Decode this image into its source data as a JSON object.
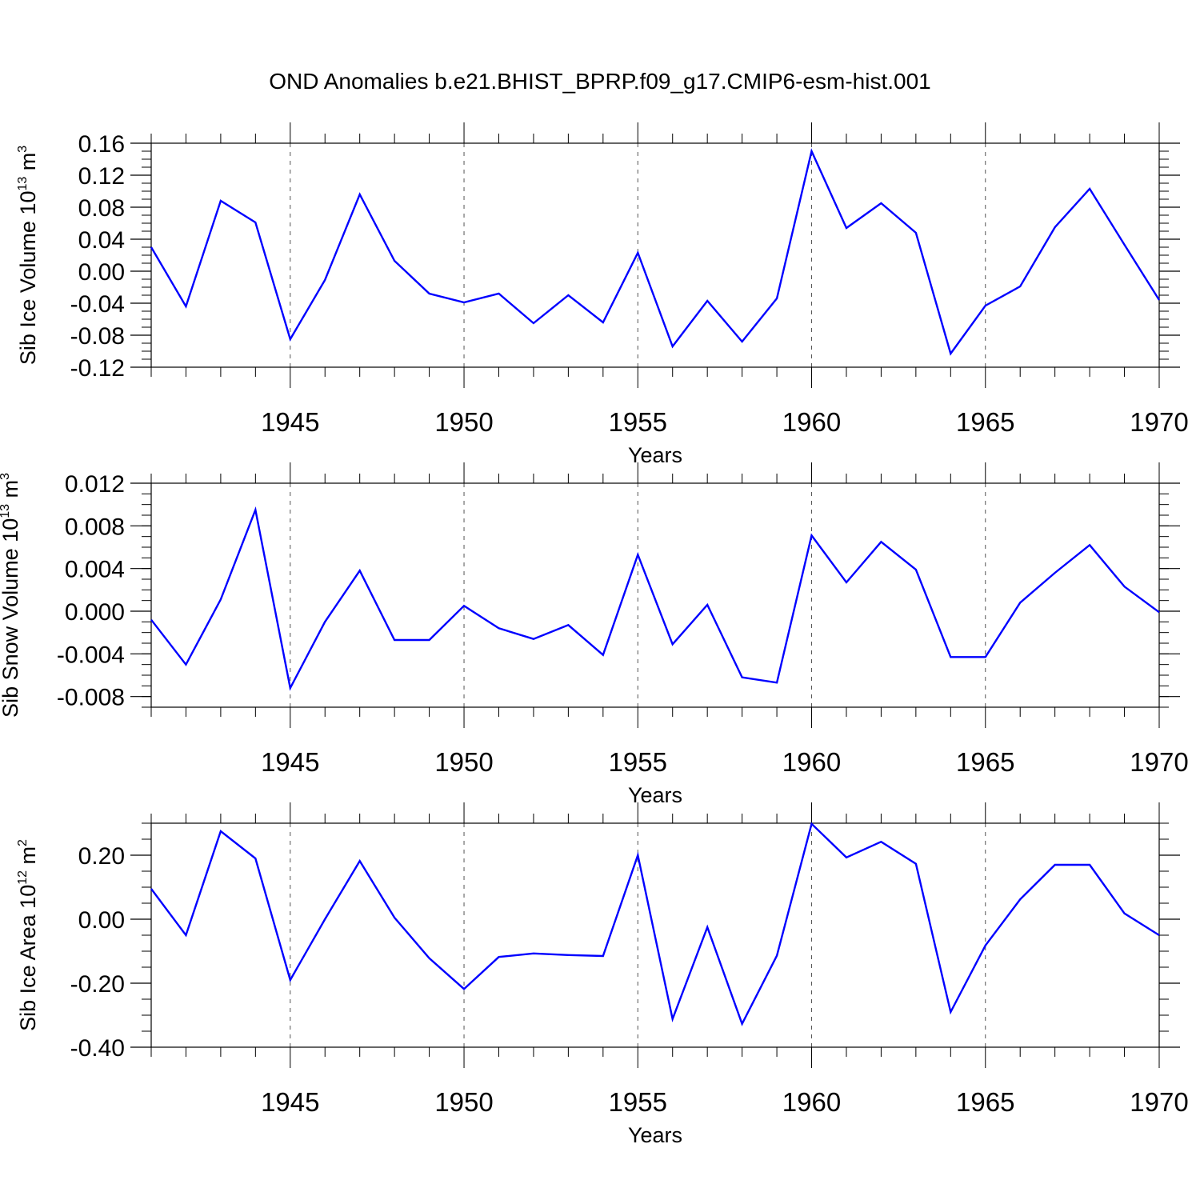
{
  "title": "OND Anomalies b.e21.BHIST_BPRP.f09_g17.CMIP6-esm-hist.001",
  "chart_data": [
    {
      "type": "line",
      "id": "ice-volume",
      "ylabel_main": "Sib Ice Volume 10",
      "ylabel_exp": "13",
      "ylabel_unit": " m",
      "ylabel_unit_exp": "3",
      "xlabel": "Years",
      "xlim": [
        1941,
        1970
      ],
      "ylim": [
        -0.12,
        0.16
      ],
      "yticks": [
        "-0.12",
        "-0.08",
        "-0.04",
        "0.00",
        "0.04",
        "0.08",
        "0.12",
        "0.16"
      ],
      "xticks": [
        "1945",
        "1950",
        "1955",
        "1960",
        "1965",
        "1970"
      ],
      "grid": "vertical dashed at major years",
      "line_color": "#0000ff",
      "series": [
        {
          "name": "Sib Ice Volume",
          "x": [
            1941,
            1942,
            1943,
            1944,
            1945,
            1946,
            1947,
            1948,
            1949,
            1950,
            1951,
            1952,
            1953,
            1954,
            1955,
            1956,
            1957,
            1958,
            1959,
            1960,
            1961,
            1962,
            1963,
            1964,
            1965,
            1966,
            1967,
            1968,
            1969,
            1970
          ],
          "values": [
            0.03,
            -0.044,
            0.088,
            0.061,
            -0.085,
            -0.011,
            0.096,
            0.013,
            -0.028,
            -0.039,
            -0.028,
            -0.065,
            -0.03,
            -0.064,
            0.023,
            -0.094,
            -0.037,
            -0.088,
            -0.034,
            0.15,
            0.054,
            0.085,
            0.048,
            -0.103,
            -0.043,
            -0.019,
            0.055,
            0.103,
            0.033,
            -0.036
          ]
        }
      ]
    },
    {
      "type": "line",
      "id": "snow-volume",
      "ylabel_main": "Sib Snow Volume 10",
      "ylabel_exp": "13",
      "ylabel_unit": " m",
      "ylabel_unit_exp": "3",
      "xlabel": "Years",
      "xlim": [
        1941,
        1970
      ],
      "ylim": [
        -0.009,
        0.012
      ],
      "yticks": [
        "-0.008",
        "-0.004",
        "0.000",
        "0.004",
        "0.008",
        "0.012"
      ],
      "xticks": [
        "1945",
        "1950",
        "1955",
        "1960",
        "1965",
        "1970"
      ],
      "grid": "vertical dashed at major years",
      "line_color": "#0000ff",
      "series": [
        {
          "name": "Sib Snow Volume",
          "x": [
            1941,
            1942,
            1943,
            1944,
            1945,
            1946,
            1947,
            1948,
            1949,
            1950,
            1951,
            1952,
            1953,
            1954,
            1955,
            1956,
            1957,
            1958,
            1959,
            1960,
            1961,
            1962,
            1963,
            1964,
            1965,
            1966,
            1967,
            1968,
            1969,
            1970
          ],
          "values": [
            -0.0008,
            -0.005,
            0.0011,
            0.0095,
            -0.0072,
            -0.001,
            0.0038,
            -0.0027,
            -0.0027,
            0.0005,
            -0.0016,
            -0.0026,
            -0.0013,
            -0.0041,
            0.0053,
            -0.0031,
            0.0006,
            -0.0062,
            -0.0067,
            0.0071,
            0.0027,
            0.0065,
            0.0039,
            -0.0043,
            -0.0043,
            0.0008,
            0.0036,
            0.0062,
            0.0023,
            -0.0001
          ]
        }
      ]
    },
    {
      "type": "line",
      "id": "ice-area",
      "ylabel_main": "Sib Ice Area 10",
      "ylabel_exp": "12",
      "ylabel_unit": " m",
      "ylabel_unit_exp": "2",
      "xlabel": "Years",
      "xlim": [
        1941,
        1970
      ],
      "ylim": [
        -0.4,
        0.3
      ],
      "yticks": [
        "-0.40",
        "-0.20",
        "0.00",
        "0.20"
      ],
      "xticks": [
        "1945",
        "1950",
        "1955",
        "1960",
        "1965",
        "1970"
      ],
      "grid": "vertical dashed at major years",
      "line_color": "#0000ff",
      "series": [
        {
          "name": "Sib Ice Area",
          "x": [
            1941,
            1942,
            1943,
            1944,
            1945,
            1946,
            1947,
            1948,
            1949,
            1950,
            1951,
            1952,
            1953,
            1954,
            1955,
            1956,
            1957,
            1958,
            1959,
            1960,
            1961,
            1962,
            1963,
            1964,
            1965,
            1966,
            1967,
            1968,
            1969,
            1970
          ],
          "values": [
            0.095,
            -0.05,
            0.275,
            0.19,
            -0.19,
            0.0,
            0.182,
            0.005,
            -0.122,
            -0.218,
            -0.118,
            -0.107,
            -0.112,
            -0.115,
            0.2,
            -0.312,
            -0.025,
            -0.327,
            -0.114,
            0.298,
            0.193,
            0.242,
            0.173,
            -0.29,
            -0.082,
            0.062,
            0.17,
            0.17,
            0.018,
            -0.05
          ]
        }
      ]
    }
  ]
}
